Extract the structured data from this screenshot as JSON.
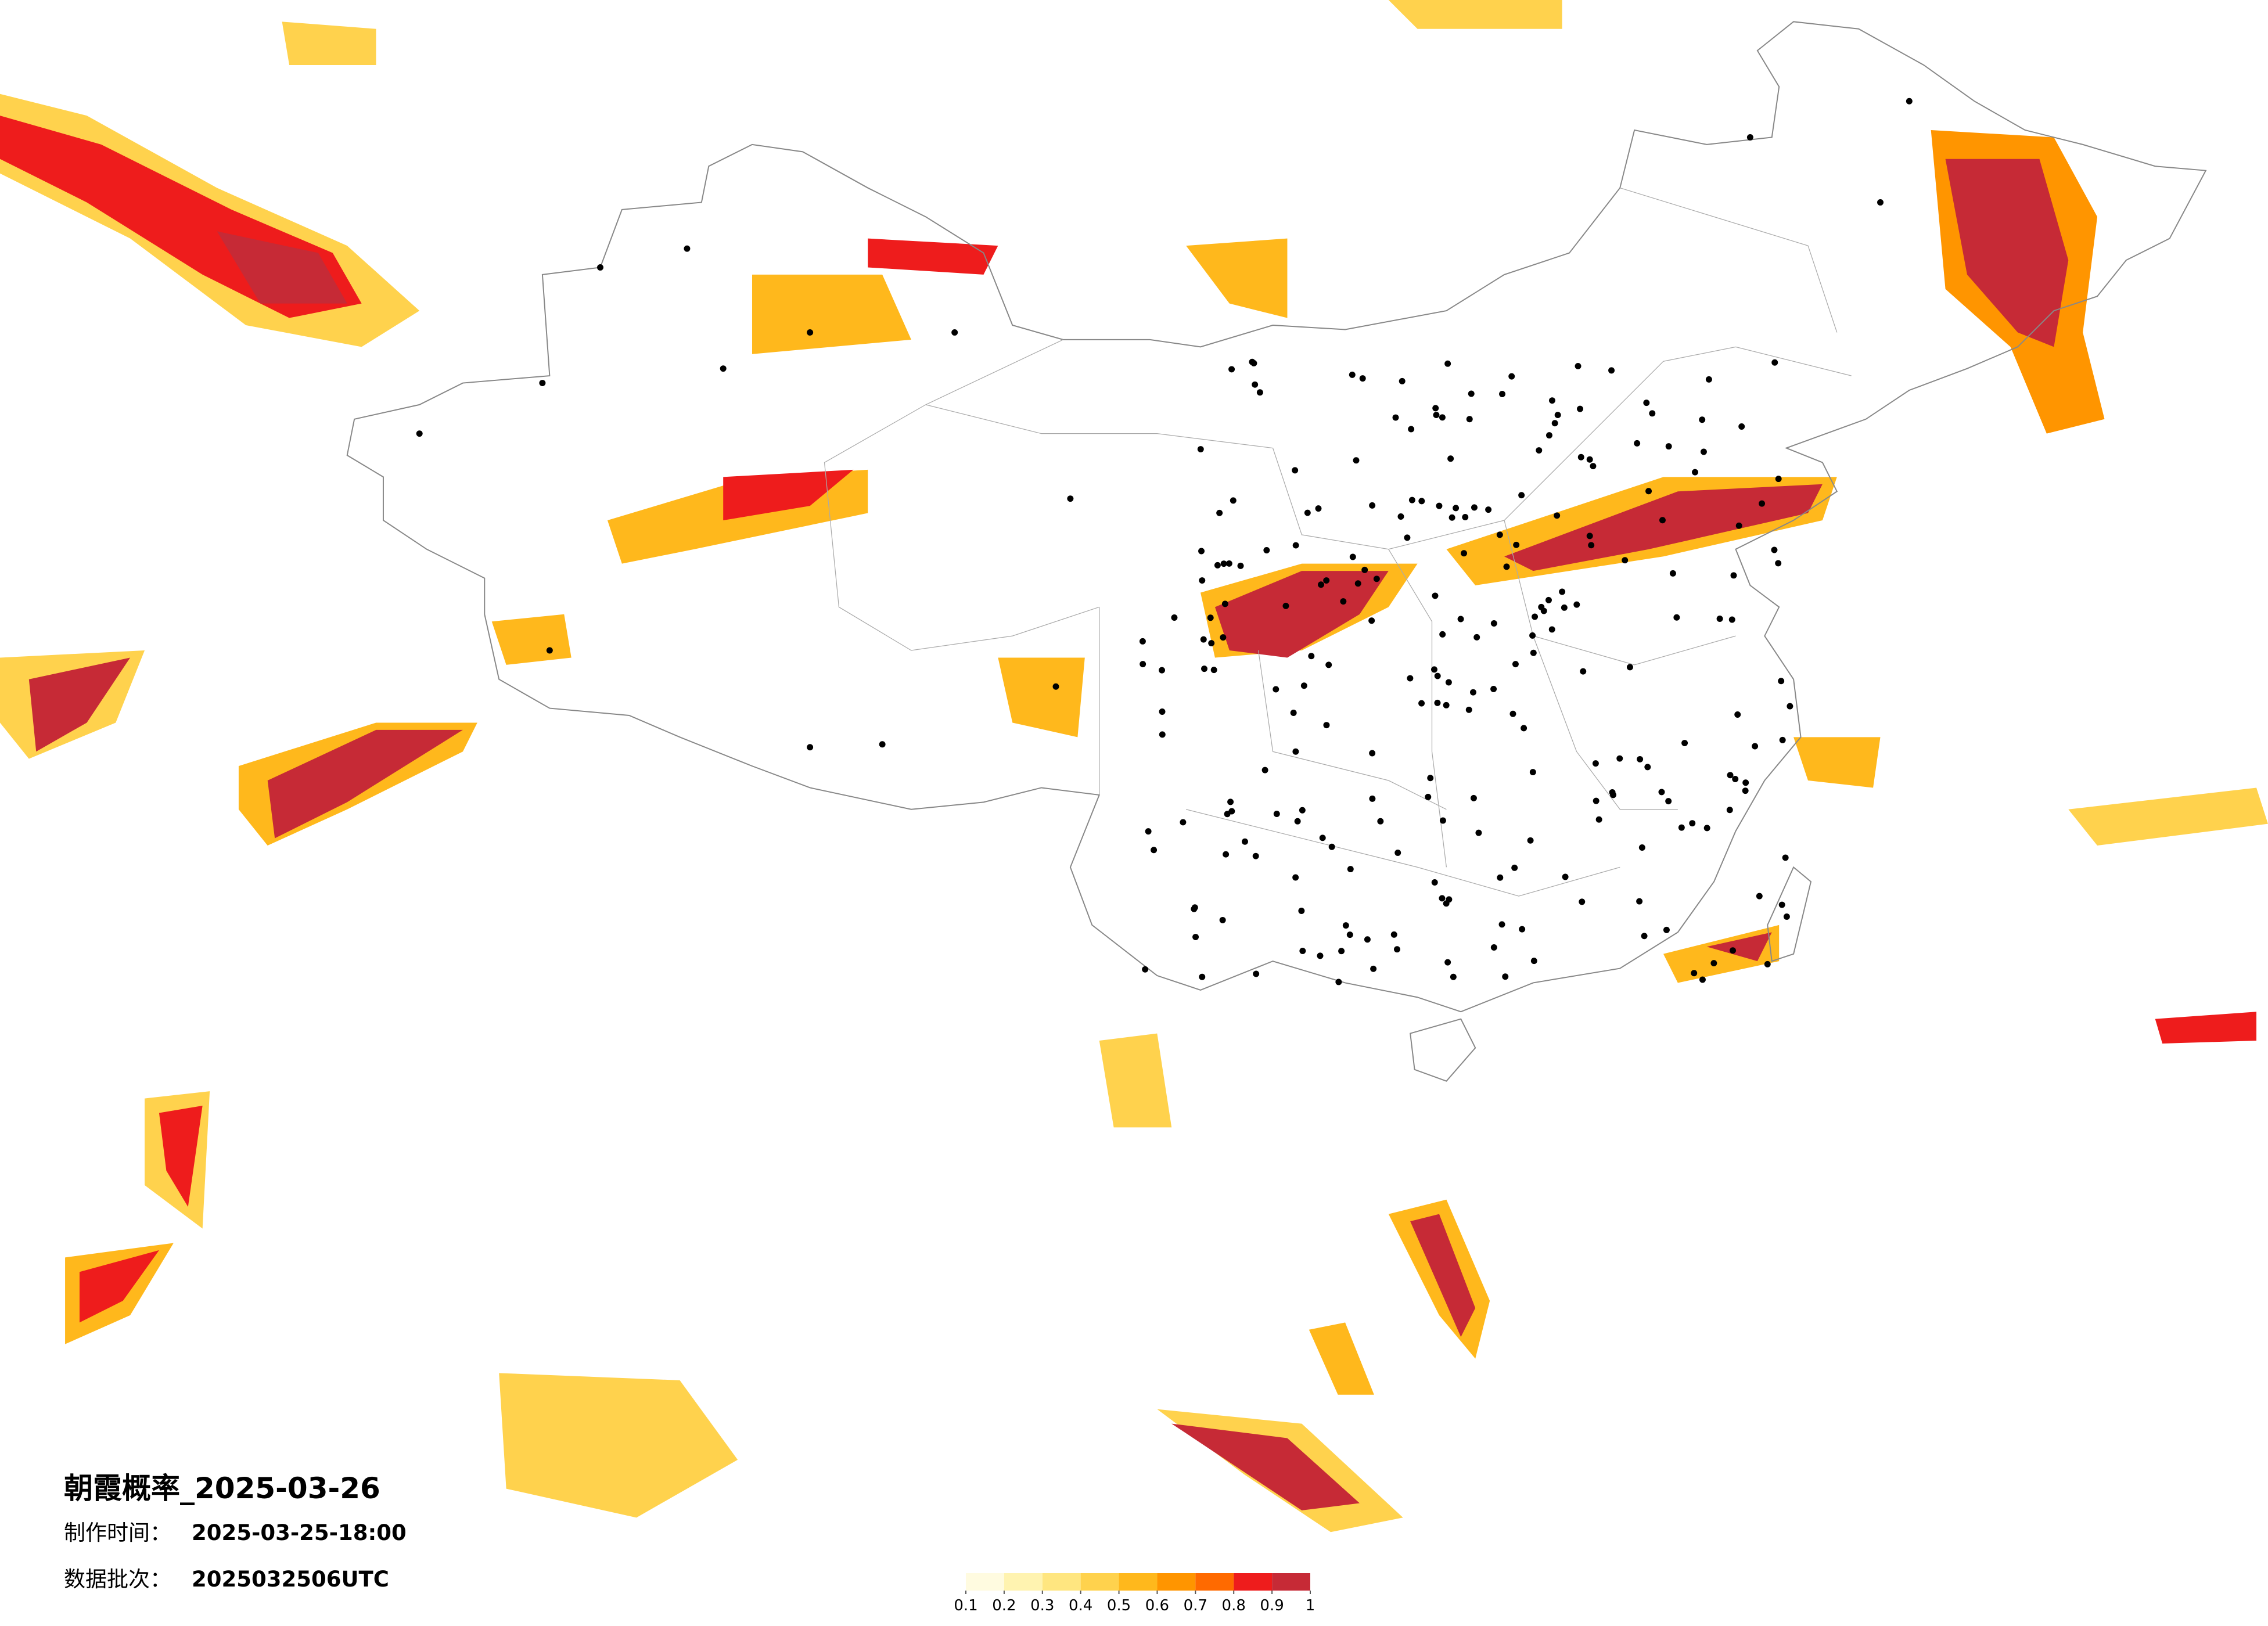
{
  "title": "朝霞概率_2025-03-26",
  "made_label": "制作时间：",
  "made_time": "2025-03-25-18:00",
  "batch_label": "数据批次：",
  "batch": "2025032506UTC",
  "legend": {
    "ticks": [
      0.1,
      0.2,
      0.3,
      0.4,
      0.5,
      0.6,
      0.7,
      0.8,
      0.9,
      1
    ],
    "colors": [
      "#fffbe0",
      "#fff3b0",
      "#ffe680",
      "#ffd24d",
      "#ffb81c",
      "#ff9500",
      "#ff6a00",
      "#ee1c1c",
      "#c62a36"
    ]
  }
}
